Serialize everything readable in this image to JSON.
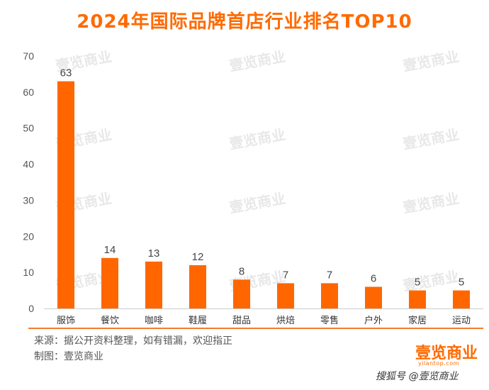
{
  "title": "2024年国际品牌首店行业排名TOP10",
  "chart_data": {
    "type": "bar",
    "categories": [
      "服饰",
      "餐饮",
      "咖啡",
      "鞋履",
      "甜品",
      "烘焙",
      "零售",
      "户外",
      "家居",
      "运动"
    ],
    "values": [
      63,
      14,
      13,
      12,
      8,
      7,
      7,
      6,
      5,
      5
    ],
    "ylim": [
      0,
      70
    ],
    "yticks": [
      0,
      10,
      20,
      30,
      40,
      50,
      60,
      70
    ],
    "bar_color": "#ff6600",
    "grid": false,
    "xlabel": "",
    "ylabel": ""
  },
  "footer": {
    "source": "来源：据公开资料整理，如有错漏，欢迎指正",
    "made_by": "制图：壹览商业",
    "logo_text": "壹览商业",
    "logo_url": "yilantop.com",
    "platform": "搜狐号 @壹览商业"
  },
  "watermark": "壹览商业",
  "colors": {
    "accent": "#ff6a00",
    "bar": "#ff6600"
  }
}
